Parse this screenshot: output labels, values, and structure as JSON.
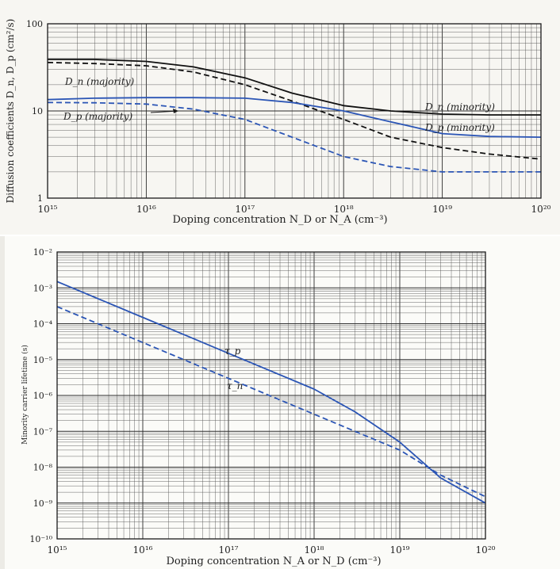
{
  "colors": {
    "black_curve": "#111111",
    "blue_curve": "#2b55b5",
    "grid": "#2b2b2b"
  },
  "chart_data": [
    {
      "type": "line",
      "x_scale": "log",
      "y_scale": "log",
      "xlim": [
        1000000000000000.0,
        1e+20
      ],
      "ylim": [
        1,
        100
      ],
      "grid": true,
      "xlabel": "Doping concentration N_D or N_A (cm⁻³)",
      "ylabel": "Diffusion coefficients D_n, D_p (cm²/s)",
      "x_ticks": [
        "10¹⁵",
        "10¹⁶",
        "10¹⁷",
        "10¹⁸",
        "10¹⁹",
        "10²⁰"
      ],
      "y_ticks": [
        "1",
        "10",
        "100"
      ],
      "series": [
        {
          "name": "D_n (majority)",
          "style": "dashed",
          "color": "#111111",
          "x": [
            1000000000000000.0,
            3000000000000000.0,
            1e+16,
            3e+16,
            1e+17,
            3e+17,
            1e+18,
            3e+18,
            1e+19,
            3e+19,
            1e+20
          ],
          "y": [
            36,
            35,
            33,
            28,
            20,
            13,
            8,
            5,
            3.8,
            3.2,
            2.8
          ]
        },
        {
          "name": "D_n (minority)",
          "style": "solid",
          "color": "#111111",
          "x": [
            1000000000000000.0,
            3000000000000000.0,
            1e+16,
            3e+16,
            1e+17,
            3e+17,
            1e+18,
            3e+18,
            1e+19,
            3e+19,
            1e+20
          ],
          "y": [
            39,
            39,
            37,
            32,
            24,
            16,
            11.5,
            10,
            9.2,
            9,
            9
          ]
        },
        {
          "name": "D_p (majority)",
          "style": "dashed",
          "color": "#2b55b5",
          "x": [
            1000000000000000.0,
            3000000000000000.0,
            1e+16,
            3e+16,
            1e+17,
            3e+17,
            1e+18,
            3e+18,
            1e+19,
            3e+19,
            1e+20
          ],
          "y": [
            12.5,
            12.4,
            12,
            10.5,
            8,
            5,
            3,
            2.3,
            2,
            2,
            2
          ]
        },
        {
          "name": "D_p (minority)",
          "style": "solid",
          "color": "#2b55b5",
          "x": [
            1000000000000000.0,
            3000000000000000.0,
            1e+16,
            3e+16,
            1e+17,
            3e+17,
            1e+18,
            3e+18,
            1e+19,
            3e+19,
            1e+20
          ],
          "y": [
            13.5,
            14,
            14.2,
            14.2,
            14,
            12.5,
            10,
            7.5,
            5.5,
            5.1,
            5
          ]
        }
      ],
      "labels": {
        "dn_major": "D_n (majority)",
        "dp_major": "D_p (majority)",
        "dn_minor": "D_n (minority)",
        "dp_minor": "D_p (minority)"
      }
    },
    {
      "type": "line",
      "x_scale": "log",
      "y_scale": "log",
      "xlim": [
        1000000000000000.0,
        1e+20
      ],
      "ylim": [
        1e-10,
        0.01
      ],
      "grid": true,
      "xlabel": "Doping concentration N_A or N_D (cm⁻³)",
      "ylabel": "Minority carrier lifetime (s)",
      "x_ticks": [
        "10¹⁵",
        "10¹⁶",
        "10¹⁷",
        "10¹⁸",
        "10¹⁹",
        "10²⁰"
      ],
      "y_ticks": [
        "10⁻¹⁰",
        "10⁻⁹",
        "10⁻⁸",
        "10⁻⁷",
        "10⁻⁶",
        "10⁻⁵",
        "10⁻⁴",
        "10⁻³",
        "10⁻²"
      ],
      "series": [
        {
          "name": "τ_p",
          "style": "solid",
          "color": "#2b55b5",
          "x": [
            1000000000000000.0,
            1e+16,
            1e+17,
            1e+18,
            3e+18,
            1e+19,
            3e+19,
            1e+20
          ],
          "y": [
            0.0015,
            0.00015,
            1.5e-05,
            1.5e-06,
            3.5e-07,
            5e-08,
            5e-09,
            1e-09
          ]
        },
        {
          "name": "τ_n",
          "style": "dashed",
          "color": "#2b55b5",
          "x": [
            1000000000000000.0,
            1e+16,
            1e+17,
            1e+18,
            1e+19,
            3e+19,
            1e+20
          ],
          "y": [
            0.0003,
            3e-05,
            3e-06,
            3e-07,
            3e-08,
            6e-09,
            1.5e-09
          ]
        }
      ],
      "labels": {
        "tau_p": "τ_p",
        "tau_n": "τ_n"
      }
    }
  ]
}
